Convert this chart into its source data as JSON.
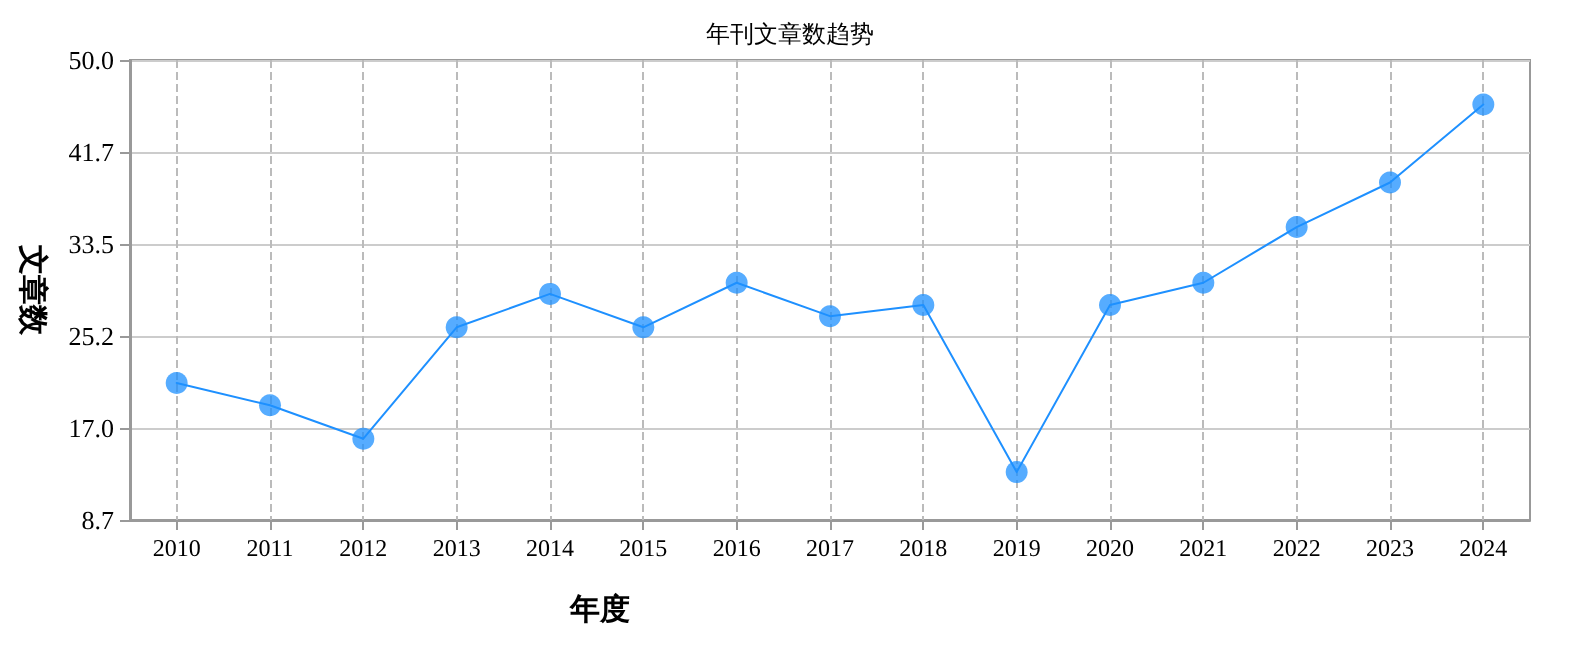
{
  "chart_data": {
    "type": "line",
    "title": "年刊文章数趋势",
    "xlabel": "年度",
    "ylabel": "文章数",
    "categories": [
      "2010",
      "2011",
      "2012",
      "2013",
      "2014",
      "2015",
      "2016",
      "2017",
      "2018",
      "2019",
      "2020",
      "2021",
      "2022",
      "2023",
      "2024"
    ],
    "series": [
      {
        "color": "#1e90ff",
        "values": [
          21,
          19,
          16,
          26,
          29,
          26,
          30,
          27,
          28,
          13,
          28,
          30,
          35,
          39,
          46
        ]
      }
    ],
    "ylim": [
      8.7,
      50.0
    ],
    "yticks": [
      {
        "value": 8.7,
        "label": "8.7"
      },
      {
        "value": 17.0,
        "label": "17.0"
      },
      {
        "value": 25.2,
        "label": "25.2"
      },
      {
        "value": 33.5,
        "label": "33.5"
      },
      {
        "value": 41.7,
        "label": "41.7"
      },
      {
        "value": 50.0,
        "label": "50.0"
      }
    ],
    "grid": true,
    "marker": "circle",
    "line_style": "solid"
  }
}
